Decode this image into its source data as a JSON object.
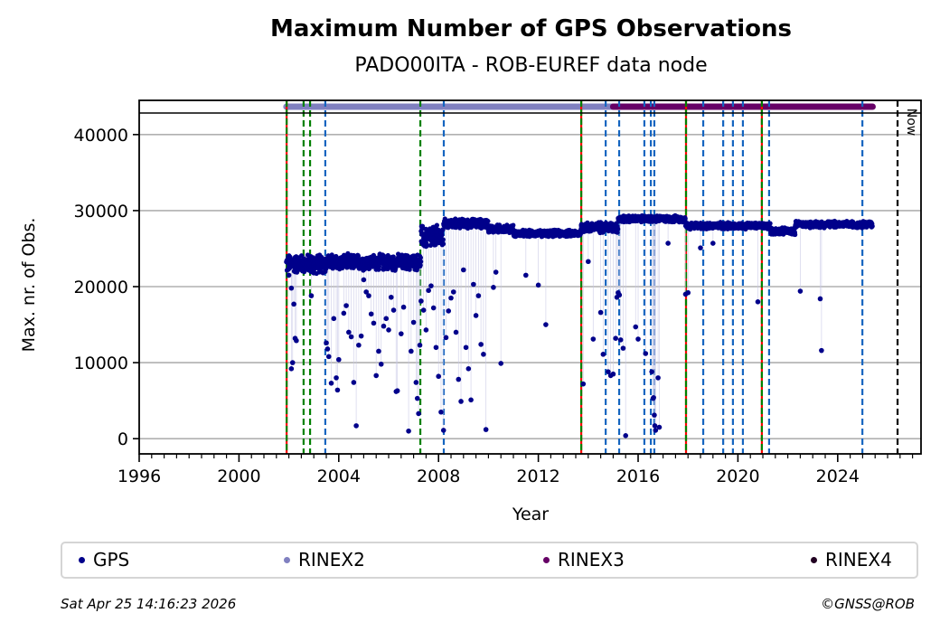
{
  "chart_data": {
    "type": "scatter",
    "title": "Maximum Number of GPS Observations",
    "subtitle": "PADO00ITA - ROB-EUREF data node",
    "xlabel": "Year",
    "ylabel": "Max. nr. of Obs.",
    "xlim": [
      1996,
      2027.34
    ],
    "ylim": [
      -2000,
      44500
    ],
    "xticks": [
      1996,
      2000,
      2004,
      2008,
      2012,
      2016,
      2020,
      2024
    ],
    "yticks": [
      0,
      10000,
      20000,
      30000,
      40000
    ],
    "grid": "horizontal",
    "legend_position": "bottom",
    "colors": {
      "gps": "#00008b",
      "rinex2": "#8080c0",
      "rinex3": "#660066",
      "rinex4": "#220022",
      "now_line": "#000000",
      "event_red_green": [
        "#ff0000",
        "#008000"
      ],
      "event_green": "#008000",
      "event_blue": "#1565c0"
    },
    "legend": [
      {
        "label": "GPS",
        "color": "#00008b"
      },
      {
        "label": "RINEX2",
        "color": "#8080c0"
      },
      {
        "label": "RINEX3",
        "color": "#660066"
      },
      {
        "label": "RINEX4",
        "color": "#220022"
      }
    ],
    "rinex_periods": [
      {
        "name": "RINEX2",
        "start": 2001.9,
        "end": 2015.0
      },
      {
        "name": "RINEX3",
        "start": 2015.0,
        "end": 2025.4
      }
    ],
    "now": {
      "label": "Now",
      "x": 2026.4
    },
    "event_lines": [
      {
        "x": 2001.91,
        "type": "red-green"
      },
      {
        "x": 2002.59,
        "type": "green"
      },
      {
        "x": 2002.85,
        "type": "green"
      },
      {
        "x": 2003.46,
        "type": "blue"
      },
      {
        "x": 2007.27,
        "type": "green"
      },
      {
        "x": 2008.21,
        "type": "blue"
      },
      {
        "x": 2013.72,
        "type": "red-green"
      },
      {
        "x": 2014.7,
        "type": "blue"
      },
      {
        "x": 2015.24,
        "type": "blue"
      },
      {
        "x": 2016.25,
        "type": "blue"
      },
      {
        "x": 2016.51,
        "type": "blue"
      },
      {
        "x": 2016.65,
        "type": "blue"
      },
      {
        "x": 2017.92,
        "type": "red-green"
      },
      {
        "x": 2018.61,
        "type": "blue"
      },
      {
        "x": 2019.41,
        "type": "blue"
      },
      {
        "x": 2019.8,
        "type": "blue"
      },
      {
        "x": 2020.2,
        "type": "blue"
      },
      {
        "x": 2020.96,
        "type": "red-green"
      },
      {
        "x": 2021.25,
        "type": "blue"
      },
      {
        "x": 2024.99,
        "type": "blue"
      }
    ],
    "series": [
      {
        "name": "GPS main band",
        "segments": [
          {
            "x0": 2001.9,
            "x1": 2003.5,
            "y": 23000,
            "spread": 1400
          },
          {
            "x0": 2003.5,
            "x1": 2007.3,
            "y": 23200,
            "spread": 1200
          },
          {
            "x0": 2007.3,
            "x1": 2008.2,
            "y": 26500,
            "spread": 1800
          },
          {
            "x0": 2008.2,
            "x1": 2010.0,
            "y": 28300,
            "spread": 700
          },
          {
            "x0": 2010.0,
            "x1": 2011.0,
            "y": 27600,
            "spread": 600
          },
          {
            "x0": 2011.0,
            "x1": 2013.7,
            "y": 27000,
            "spread": 500
          },
          {
            "x0": 2013.7,
            "x1": 2015.2,
            "y": 27800,
            "spread": 800
          },
          {
            "x0": 2015.2,
            "x1": 2017.9,
            "y": 28900,
            "spread": 500
          },
          {
            "x0": 2017.9,
            "x1": 2021.3,
            "y": 28000,
            "spread": 500
          },
          {
            "x0": 2021.3,
            "x1": 2022.3,
            "y": 27300,
            "spread": 500
          },
          {
            "x0": 2022.3,
            "x1": 2025.4,
            "y": 28200,
            "spread": 500
          }
        ]
      },
      {
        "name": "GPS outliers",
        "points": [
          [
            2002.0,
            21500
          ],
          [
            2002.1,
            19800
          ],
          [
            2002.2,
            17700
          ],
          [
            2002.25,
            13200
          ],
          [
            2002.3,
            12900
          ],
          [
            2002.1,
            9200
          ],
          [
            2002.15,
            10000
          ],
          [
            2002.9,
            18800
          ],
          [
            2003.0,
            21800
          ],
          [
            2003.5,
            12600
          ],
          [
            2003.55,
            11800
          ],
          [
            2003.6,
            10800
          ],
          [
            2003.7,
            7300
          ],
          [
            2003.8,
            15800
          ],
          [
            2003.9,
            8000
          ],
          [
            2003.95,
            6400
          ],
          [
            2004.0,
            10400
          ],
          [
            2004.2,
            16500
          ],
          [
            2004.3,
            17500
          ],
          [
            2004.4,
            14000
          ],
          [
            2004.5,
            13400
          ],
          [
            2004.6,
            7400
          ],
          [
            2004.7,
            1700
          ],
          [
            2004.8,
            12300
          ],
          [
            2004.9,
            13500
          ],
          [
            2005.0,
            20900
          ],
          [
            2005.1,
            19300
          ],
          [
            2005.2,
            18800
          ],
          [
            2005.3,
            16400
          ],
          [
            2005.4,
            15200
          ],
          [
            2005.5,
            8300
          ],
          [
            2005.6,
            11500
          ],
          [
            2005.7,
            9800
          ],
          [
            2005.8,
            14800
          ],
          [
            2005.9,
            15800
          ],
          [
            2006.0,
            14300
          ],
          [
            2006.1,
            18600
          ],
          [
            2006.2,
            16900
          ],
          [
            2006.3,
            6200
          ],
          [
            2006.35,
            6300
          ],
          [
            2006.5,
            13800
          ],
          [
            2006.6,
            17300
          ],
          [
            2006.8,
            1000
          ],
          [
            2006.9,
            11500
          ],
          [
            2007.0,
            15300
          ],
          [
            2007.1,
            7400
          ],
          [
            2007.15,
            5300
          ],
          [
            2007.2,
            3300
          ],
          [
            2007.25,
            12300
          ],
          [
            2007.3,
            18100
          ],
          [
            2007.4,
            16900
          ],
          [
            2007.5,
            14300
          ],
          [
            2007.6,
            19500
          ],
          [
            2007.7,
            20100
          ],
          [
            2007.8,
            17200
          ],
          [
            2007.9,
            12000
          ],
          [
            2008.0,
            8200
          ],
          [
            2008.1,
            3500
          ],
          [
            2008.2,
            1100
          ],
          [
            2008.3,
            13300
          ],
          [
            2008.4,
            16800
          ],
          [
            2008.5,
            18500
          ],
          [
            2008.6,
            19300
          ],
          [
            2008.7,
            14000
          ],
          [
            2008.8,
            7800
          ],
          [
            2008.9,
            4900
          ],
          [
            2009.0,
            22200
          ],
          [
            2009.1,
            12000
          ],
          [
            2009.2,
            9200
          ],
          [
            2009.3,
            5100
          ],
          [
            2009.4,
            20300
          ],
          [
            2009.5,
            16200
          ],
          [
            2009.6,
            18800
          ],
          [
            2009.7,
            12400
          ],
          [
            2009.8,
            11100
          ],
          [
            2009.9,
            1200
          ],
          [
            2010.2,
            19900
          ],
          [
            2010.3,
            21900
          ],
          [
            2010.5,
            9900
          ],
          [
            2011.5,
            21500
          ],
          [
            2012.0,
            20200
          ],
          [
            2012.3,
            15000
          ],
          [
            2013.8,
            7200
          ],
          [
            2014.0,
            23300
          ],
          [
            2014.2,
            13100
          ],
          [
            2014.5,
            16600
          ],
          [
            2014.6,
            11100
          ],
          [
            2014.8,
            8800
          ],
          [
            2014.9,
            8300
          ],
          [
            2015.0,
            8500
          ],
          [
            2015.1,
            13200
          ],
          [
            2015.15,
            18600
          ],
          [
            2015.2,
            19200
          ],
          [
            2015.25,
            18900
          ],
          [
            2015.3,
            13000
          ],
          [
            2015.4,
            11900
          ],
          [
            2015.5,
            400
          ],
          [
            2015.9,
            14700
          ],
          [
            2016.0,
            13100
          ],
          [
            2016.3,
            11200
          ],
          [
            2016.55,
            8800
          ],
          [
            2016.6,
            5300
          ],
          [
            2016.62,
            5400
          ],
          [
            2016.65,
            3100
          ],
          [
            2016.67,
            1700
          ],
          [
            2016.7,
            1100
          ],
          [
            2016.8,
            8000
          ],
          [
            2016.85,
            1500
          ],
          [
            2017.2,
            25700
          ],
          [
            2017.9,
            19000
          ],
          [
            2018.0,
            19200
          ],
          [
            2018.5,
            25100
          ],
          [
            2019.0,
            25700
          ],
          [
            2020.8,
            18000
          ],
          [
            2022.5,
            19400
          ],
          [
            2023.3,
            18400
          ],
          [
            2023.35,
            11600
          ]
        ]
      }
    ]
  },
  "footer": {
    "timestamp": "Sat Apr 25 14:16:23 2026",
    "copyright": "©GNSS@ROB"
  }
}
